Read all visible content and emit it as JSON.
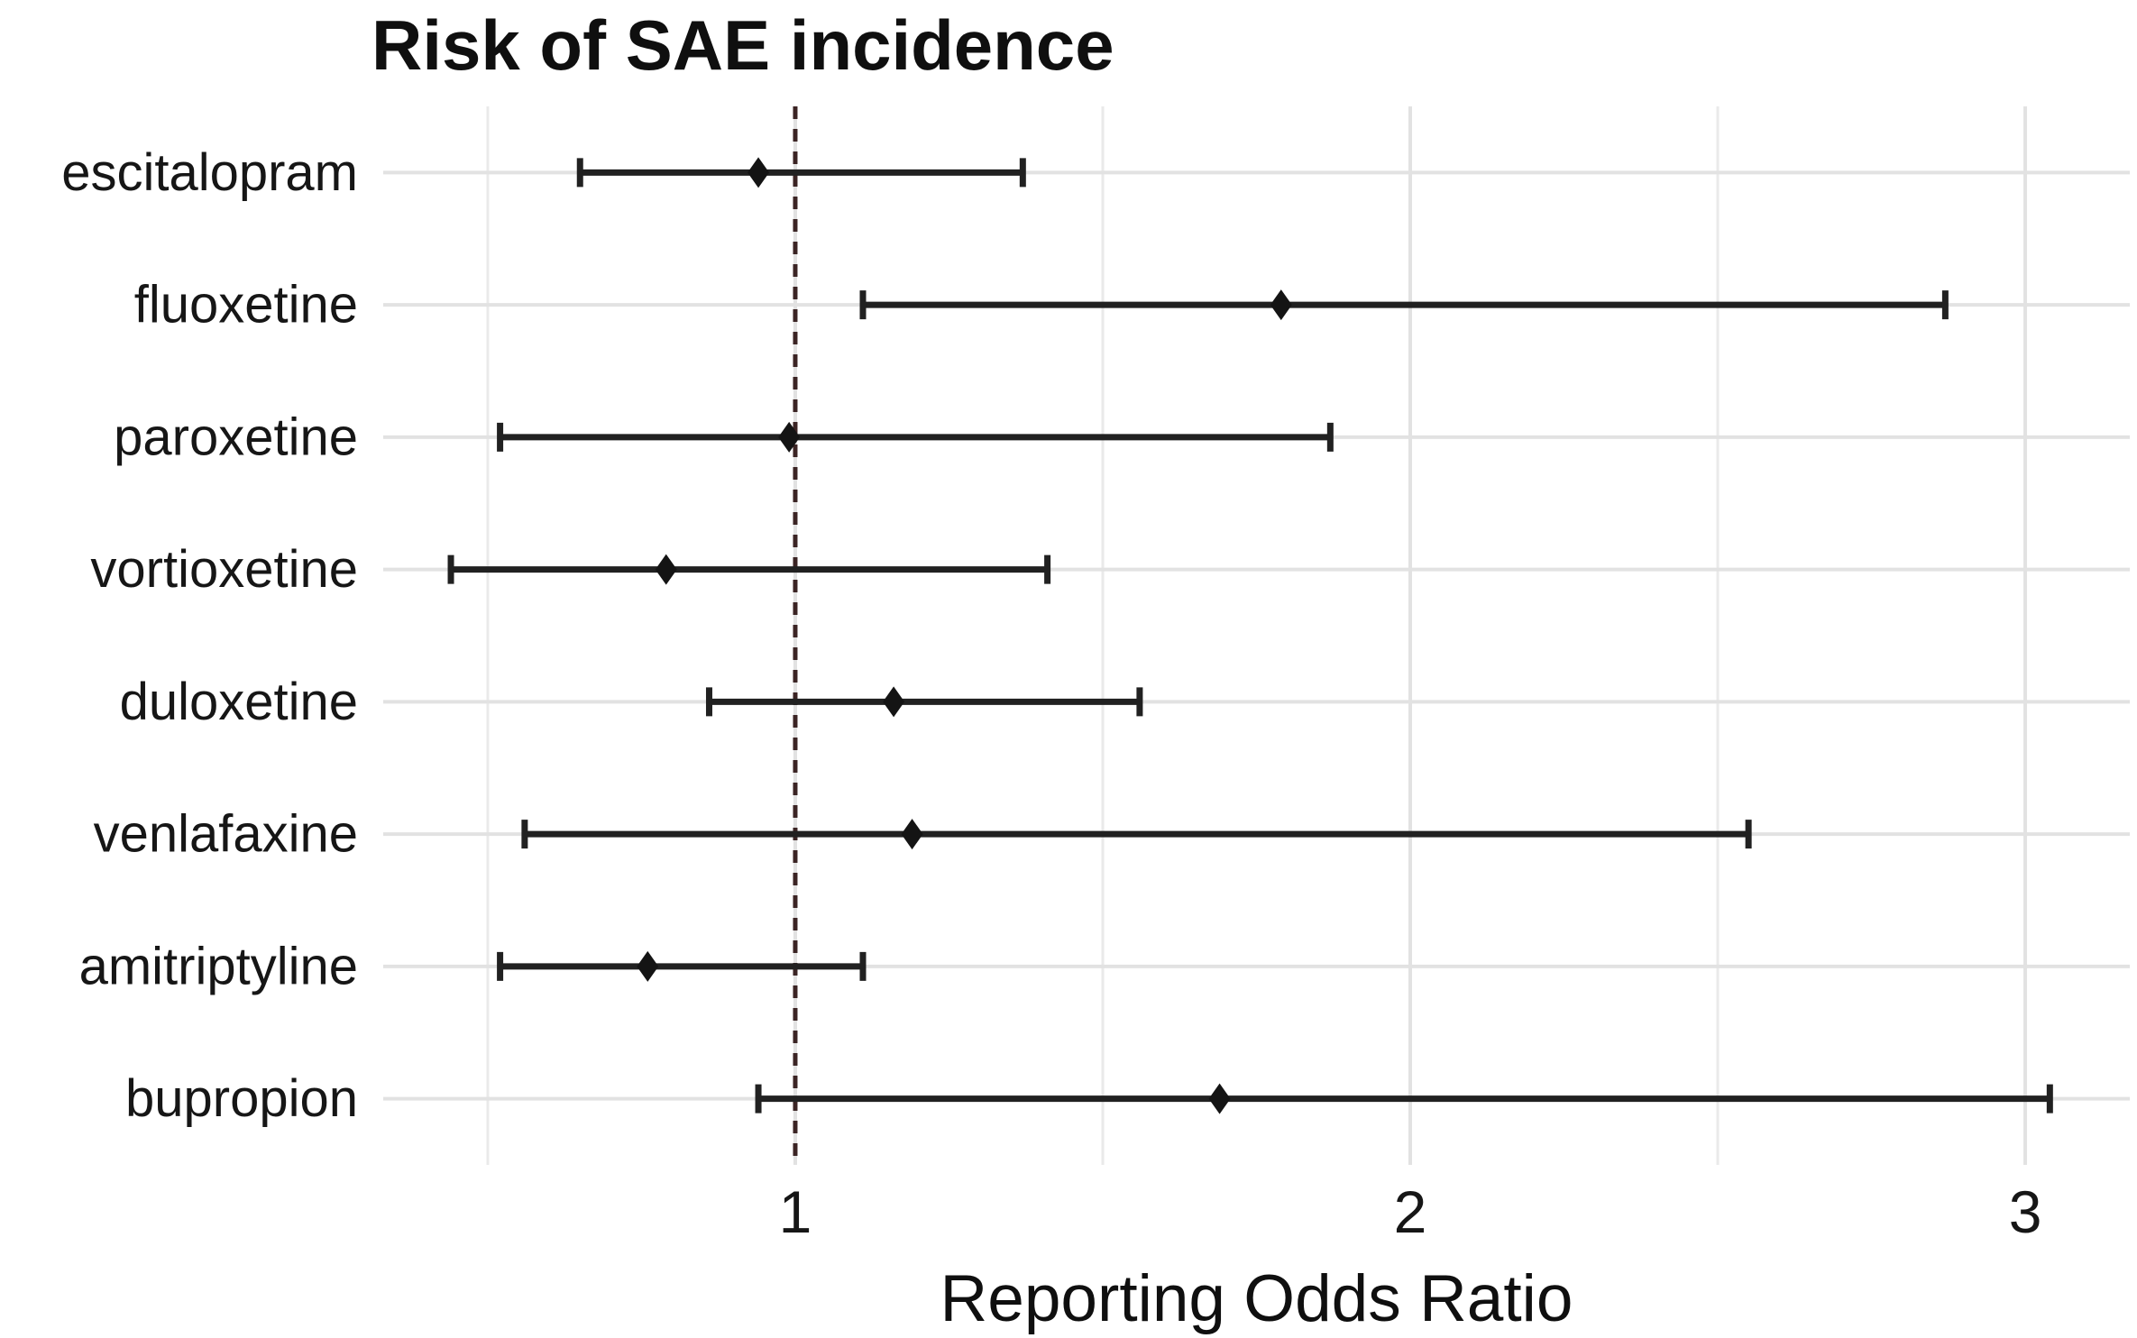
{
  "chart_data": {
    "type": "scatter",
    "subtype": "forest-plot",
    "title": "Risk of SAE incidence",
    "xlabel": "Reporting Odds Ratio",
    "ylabel": "",
    "categories": [
      "escitalopram",
      "fluoxetine",
      "paroxetine",
      "vortioxetine",
      "duloxetine",
      "venlafaxine",
      "amitriptyline",
      "bupropion"
    ],
    "points": [
      {
        "label": "escitalopram",
        "or": 0.94,
        "ci_low": 0.65,
        "ci_high": 1.37
      },
      {
        "label": "fluoxetine",
        "or": 1.79,
        "ci_low": 1.11,
        "ci_high": 2.87
      },
      {
        "label": "paroxetine",
        "or": 0.99,
        "ci_low": 0.52,
        "ci_high": 1.87
      },
      {
        "label": "vortioxetine",
        "or": 0.79,
        "ci_low": 0.44,
        "ci_high": 1.41
      },
      {
        "label": "duloxetine",
        "or": 1.16,
        "ci_low": 0.86,
        "ci_high": 1.56
      },
      {
        "label": "venlafaxine",
        "or": 1.19,
        "ci_low": 0.56,
        "ci_high": 2.55
      },
      {
        "label": "amitriptyline",
        "or": 0.76,
        "ci_low": 0.52,
        "ci_high": 1.11
      },
      {
        "label": "bupropion",
        "or": 1.69,
        "ci_low": 0.94,
        "ci_high": 3.04
      }
    ],
    "x_ticks": [
      1,
      2,
      3
    ],
    "x_minor_gridlines": [
      0.5,
      1.5,
      2.5
    ],
    "xlim": [
      0.33,
      3.17
    ],
    "reference_line": {
      "x": 1,
      "style": "dashed"
    },
    "grid": true,
    "legend": false,
    "marker_shape": "diamond"
  },
  "colors": {
    "background": "#ffffff",
    "grid_major": "#e2e2e2",
    "grid_minor": "#eaeaea",
    "reference_line": "#3b2424",
    "error_bar": "#212121",
    "marker": "#141414",
    "axis_text": "#161616",
    "title_text": "#0f0f0f"
  }
}
